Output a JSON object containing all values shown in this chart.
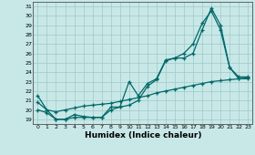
{
  "xlabel": "Humidex (Indice chaleur)",
  "background_color": "#c8e8e8",
  "grid_color": "#a0c8c8",
  "line_color": "#006868",
  "xlim": [
    -0.5,
    23.5
  ],
  "ylim": [
    18.5,
    31.5
  ],
  "yticks": [
    19,
    20,
    21,
    22,
    23,
    24,
    25,
    26,
    27,
    28,
    29,
    30,
    31
  ],
  "xticks": [
    0,
    1,
    2,
    3,
    4,
    5,
    6,
    7,
    8,
    9,
    10,
    11,
    12,
    13,
    14,
    15,
    16,
    17,
    18,
    19,
    20,
    21,
    22,
    23
  ],
  "line1_x": [
    0,
    1,
    2,
    3,
    4,
    5,
    6,
    7,
    8,
    9,
    10,
    11,
    12,
    13,
    14,
    15,
    16,
    17,
    18,
    19,
    20,
    21,
    22,
    23
  ],
  "line1_y": [
    20.8,
    20.0,
    19.8,
    20.0,
    20.2,
    20.4,
    20.5,
    20.6,
    20.7,
    20.9,
    21.1,
    21.3,
    21.5,
    21.8,
    22.0,
    22.2,
    22.4,
    22.6,
    22.8,
    23.0,
    23.1,
    23.2,
    23.3,
    23.4
  ],
  "line2_x": [
    0,
    1,
    2,
    3,
    4,
    5,
    6,
    7,
    8,
    9,
    10,
    11,
    12,
    13,
    14,
    15,
    16,
    17,
    18,
    19,
    20,
    21,
    22,
    23
  ],
  "line2_y": [
    21.5,
    20.0,
    19.0,
    19.0,
    19.2,
    19.2,
    19.2,
    19.2,
    20.0,
    20.3,
    20.5,
    21.0,
    22.5,
    23.2,
    25.2,
    25.5,
    25.5,
    26.0,
    28.5,
    30.8,
    29.0,
    24.5,
    23.3,
    23.3
  ],
  "line3_x": [
    0,
    1,
    2,
    3,
    4,
    5,
    6,
    7,
    8,
    9,
    10,
    11,
    12,
    13,
    14,
    15,
    16,
    17,
    18,
    19,
    20,
    21,
    22,
    23
  ],
  "line3_y": [
    20.0,
    19.7,
    19.0,
    19.0,
    19.5,
    19.3,
    19.2,
    19.2,
    20.3,
    20.3,
    23.0,
    21.5,
    22.8,
    23.3,
    25.3,
    25.5,
    26.0,
    27.0,
    29.2,
    30.5,
    28.5,
    24.5,
    23.5,
    23.5
  ],
  "marker": "+",
  "markersize": 3,
  "linewidth": 0.9
}
